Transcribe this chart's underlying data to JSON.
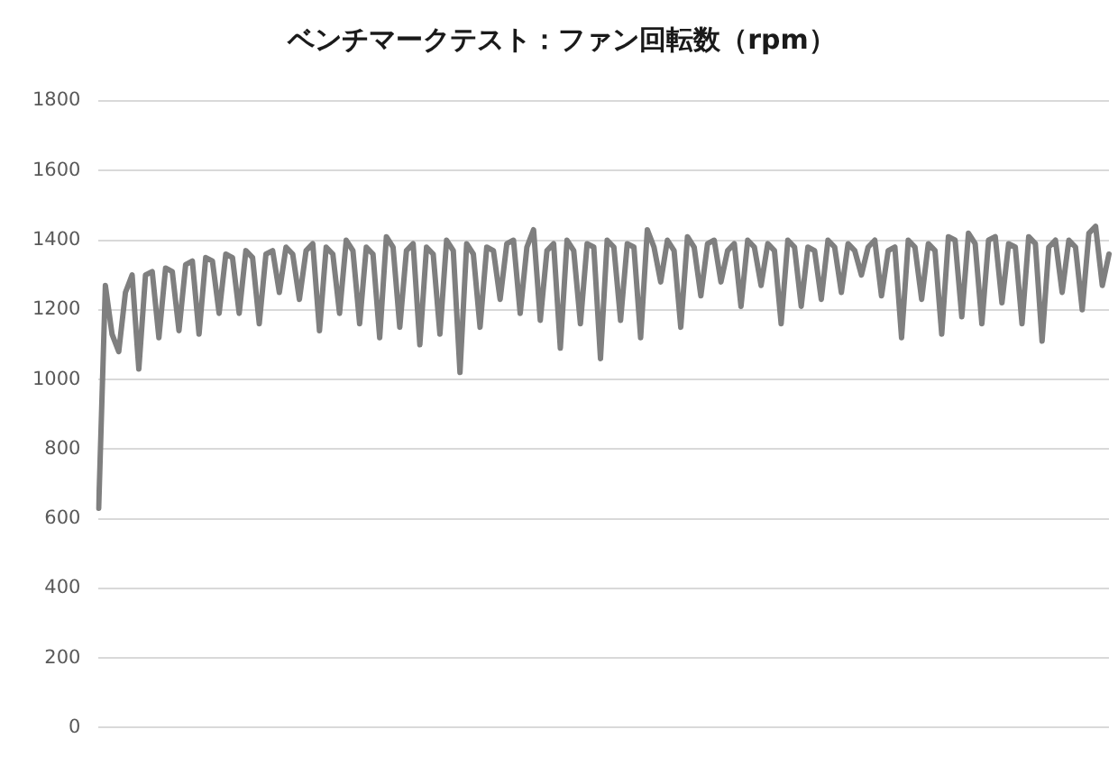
{
  "chart_data": {
    "type": "line",
    "title": "ベンチマークテスト：ファン回転数（rpm）",
    "categories": [
      null,
      null,
      null,
      null,
      null,
      null,
      null,
      null,
      null,
      null,
      null,
      null,
      null,
      null,
      null,
      null,
      null,
      null,
      null,
      null,
      null,
      null,
      null,
      null,
      null,
      null,
      null,
      null,
      null,
      null,
      null,
      null,
      null,
      null,
      null,
      null,
      null,
      null,
      null,
      null,
      null,
      null,
      null,
      null,
      null,
      null,
      null,
      null,
      null,
      null,
      null,
      null,
      null,
      null,
      null,
      null,
      null,
      null,
      null,
      null,
      null,
      null,
      null,
      null,
      null,
      null,
      null,
      null,
      null,
      null,
      null,
      null,
      null,
      null,
      null,
      null,
      null,
      null,
      null,
      null,
      null,
      null,
      null,
      null,
      null,
      null,
      null,
      null,
      null,
      null,
      null,
      null,
      null,
      null,
      null,
      null,
      null,
      null,
      null,
      null,
      null,
      null,
      null,
      null,
      null,
      null,
      null,
      null,
      null,
      null,
      null,
      null,
      null,
      null,
      null,
      null,
      null,
      null,
      null,
      null,
      null,
      null,
      null,
      null,
      null,
      null,
      null,
      null,
      null,
      null,
      null,
      null,
      null,
      null,
      null,
      null,
      null,
      null,
      null,
      null,
      null,
      null,
      null,
      null,
      null,
      null,
      null,
      null,
      null,
      null,
      null,
      null
    ],
    "values": [
      630,
      1270,
      1130,
      1080,
      1250,
      1300,
      1030,
      1300,
      1310,
      1120,
      1320,
      1310,
      1140,
      1330,
      1340,
      1130,
      1350,
      1340,
      1190,
      1360,
      1350,
      1190,
      1370,
      1350,
      1160,
      1360,
      1370,
      1250,
      1380,
      1360,
      1230,
      1370,
      1390,
      1140,
      1380,
      1360,
      1190,
      1400,
      1370,
      1160,
      1380,
      1360,
      1120,
      1410,
      1380,
      1150,
      1370,
      1390,
      1100,
      1380,
      1360,
      1130,
      1400,
      1370,
      1020,
      1390,
      1360,
      1150,
      1380,
      1370,
      1230,
      1390,
      1400,
      1190,
      1380,
      1430,
      1170,
      1370,
      1390,
      1090,
      1400,
      1370,
      1160,
      1390,
      1380,
      1060,
      1400,
      1380,
      1170,
      1390,
      1380,
      1120,
      1430,
      1380,
      1280,
      1400,
      1370,
      1150,
      1410,
      1380,
      1240,
      1390,
      1400,
      1280,
      1370,
      1390,
      1210,
      1400,
      1380,
      1270,
      1390,
      1370,
      1160,
      1400,
      1380,
      1210,
      1380,
      1370,
      1230,
      1400,
      1380,
      1250,
      1390,
      1370,
      1300,
      1380,
      1400,
      1240,
      1370,
      1380,
      1120,
      1400,
      1380,
      1230,
      1390,
      1370,
      1130,
      1410,
      1400,
      1180,
      1420,
      1390,
      1160,
      1400,
      1410,
      1220,
      1390,
      1380,
      1160,
      1410,
      1390,
      1110,
      1380,
      1400,
      1250,
      1400,
      1380,
      1200,
      1420,
      1440,
      1270,
      1360
    ],
    "color": "#7f7f7f",
    "ylim": [
      0,
      1800
    ],
    "yticks": [
      0,
      200,
      400,
      600,
      800,
      1000,
      1200,
      1400,
      1600,
      1800
    ],
    "grid": "y",
    "tick_labels": "y",
    "marker": "none",
    "line_style": "solid"
  }
}
